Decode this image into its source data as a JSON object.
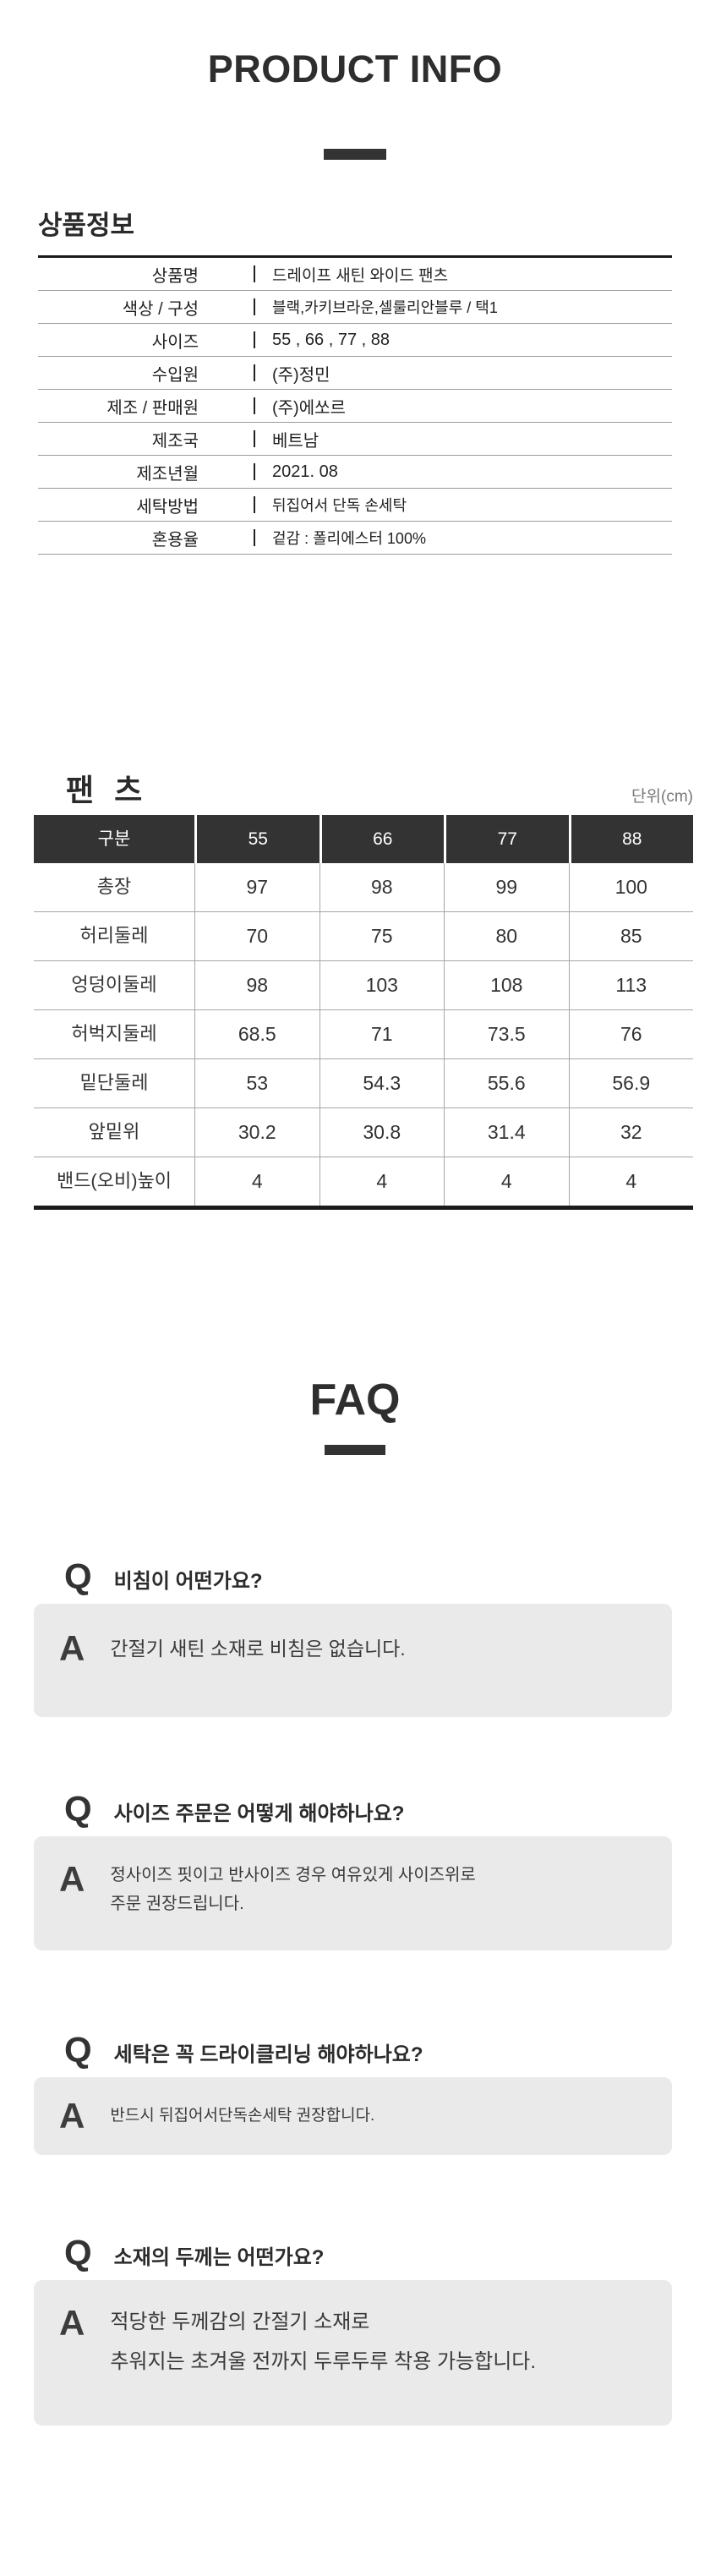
{
  "header": {
    "title": "PRODUCT INFO"
  },
  "product_info": {
    "heading": "상품정보",
    "rows": [
      {
        "label": "상품명",
        "value": "드레이프 새틴 와이드 팬츠"
      },
      {
        "label": "색상 / 구성",
        "value": "블랙,카키브라운,셀룰리안블루 /  택1"
      },
      {
        "label": "사이즈",
        "value": "55 , 66 , 77 , 88"
      },
      {
        "label": "수입원",
        "value": "(주)정민"
      },
      {
        "label": "제조 / 판매원",
        "value": "(주)에쏘르"
      },
      {
        "label": "제조국",
        "value": "베트남"
      },
      {
        "label": "제조년월",
        "value": "2021. 08"
      },
      {
        "label": "세탁방법",
        "value": "뒤집어서 단독 손세탁"
      },
      {
        "label": "혼용율",
        "value": "겉감 : 폴리에스터 100%"
      }
    ]
  },
  "size_chart": {
    "heading": "팬 츠",
    "unit_label": "단위(cm)",
    "header_row": [
      "구분",
      "55",
      "66",
      "77",
      "88"
    ],
    "rows": [
      {
        "label": "총장",
        "values": [
          "97",
          "98",
          "99",
          "100"
        ]
      },
      {
        "label": "허리둘레",
        "values": [
          "70",
          "75",
          "80",
          "85"
        ]
      },
      {
        "label": "엉덩이둘레",
        "values": [
          "98",
          "103",
          "108",
          "113"
        ]
      },
      {
        "label": "허벅지둘레",
        "values": [
          "68.5",
          "71",
          "73.5",
          "76"
        ]
      },
      {
        "label": "밑단둘레",
        "values": [
          "53",
          "54.3",
          "55.6",
          "56.9"
        ]
      },
      {
        "label": "앞밑위",
        "values": [
          "30.2",
          "30.8",
          "31.4",
          "32"
        ]
      },
      {
        "label": "밴드(오비)높이",
        "values": [
          "4",
          "4",
          "4",
          "4"
        ]
      }
    ]
  },
  "faq": {
    "title": "FAQ",
    "q_letter": "Q",
    "a_letter": "A",
    "items": [
      {
        "question": "비침이 어떤가요?",
        "answer": "간절기 새틴 소재로 비침은 없습니다."
      },
      {
        "question": "사이즈 주문은 어떻게 해야하나요?",
        "answer": "정사이즈 핏이고 반사이즈 경우 여유있게 사이즈위로\n주문 권장드립니다."
      },
      {
        "question": "세탁은 꼭 드라이클리닝 해야하나요?",
        "answer": "반드시 뒤집어서단독손세탁 권장합니다."
      },
      {
        "question": "소재의 두께는 어떤가요?",
        "answer": "적당한 두께감의 간절기 소재로\n추워지는 초겨울 전까지 두루두루 착용 가능합니다."
      }
    ]
  },
  "colors": {
    "accent_dark": "#333333",
    "table_header_bg": "#333333",
    "answer_box_bg": "#eaeaea",
    "muted_text": "#777777",
    "thin_line": "#a6a6a6"
  }
}
